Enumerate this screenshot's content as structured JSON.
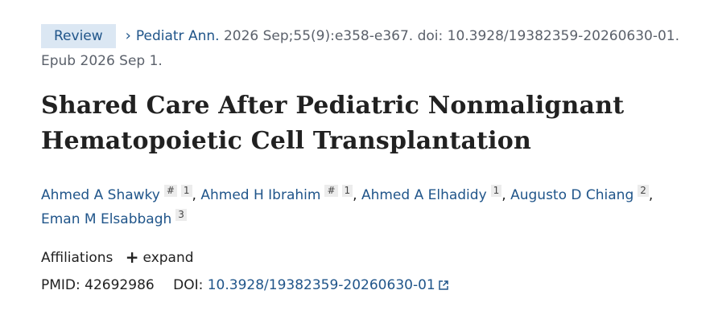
{
  "citation": {
    "badge": "Review",
    "journal": "Pediatr Ann.",
    "details": "2026 Sep;55(9):e358-e367. doi: 10.3928/19382359-20260630-01.",
    "epub": "Epub 2026 Sep 1."
  },
  "article": {
    "title_line1": "Shared Care After Pediatric Nonmalignant",
    "title_line2": "Hematopoietic Cell Transplantation"
  },
  "authors": [
    {
      "name": "Ahmed A Shawky",
      "equal": "#",
      "aff": "1"
    },
    {
      "name": "Ahmed H Ibrahim",
      "equal": "#",
      "aff": "1"
    },
    {
      "name": "Ahmed A Elhadidy",
      "aff": "1"
    },
    {
      "name": "Augusto D Chiang",
      "aff": "2"
    },
    {
      "name": "Eman M Elsabbagh",
      "aff": "3"
    }
  ],
  "affiliations": {
    "label": "Affiliations",
    "expand_label": "expand"
  },
  "ids": {
    "pmid_label": "PMID:",
    "pmid": "42692986",
    "doi_label": "DOI:",
    "doi": "10.3928/19382359-20260630-01"
  },
  "icons": {
    "chevron": "chevron-right-icon",
    "plus": "plus-icon",
    "external": "external-link-icon"
  },
  "colors": {
    "link": "#20558a",
    "badge_bg": "#dbe7f3",
    "muted": "#5b616b"
  }
}
